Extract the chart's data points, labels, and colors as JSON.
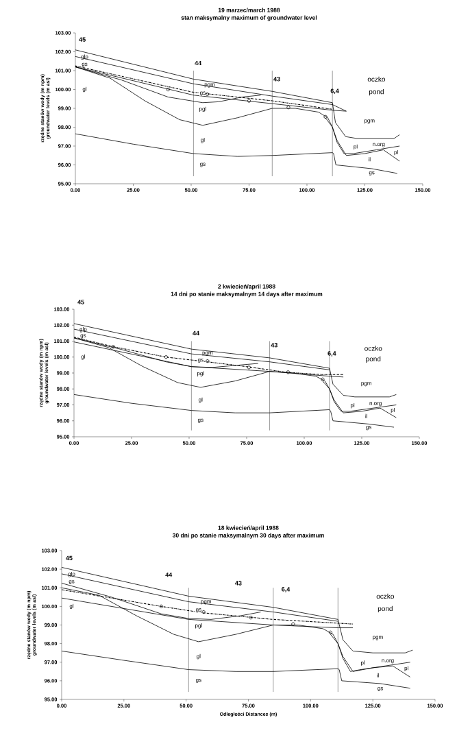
{
  "chart_data": [
    {
      "type": "line",
      "title": "19 marzec/march 1988",
      "subtitle": "stan maksymalny   maximum of groundwater level",
      "ylabel": "rzędne stanów wody (m npm) groundwater levels (m asl)",
      "xlim": [
        0,
        150
      ],
      "ylim": [
        95,
        103
      ],
      "xticks": [
        {
          "value": 0,
          "label": "0.00"
        },
        {
          "value": 25,
          "label": "25.00"
        },
        {
          "value": 50,
          "label": "50.00"
        },
        {
          "value": 75,
          "label": "75.00"
        },
        {
          "value": 100,
          "label": "100.00"
        },
        {
          "value": 125,
          "label": "125.00"
        },
        {
          "value": 150,
          "label": "150.00"
        }
      ],
      "yticks": [
        {
          "value": 95,
          "label": "95.00"
        },
        {
          "value": 96,
          "label": "96.00"
        },
        {
          "value": 97,
          "label": "97.00"
        },
        {
          "value": 98,
          "label": "98.00"
        },
        {
          "value": 99,
          "label": "99.00"
        },
        {
          "value": 100,
          "label": "100.00"
        },
        {
          "value": 101,
          "label": "101.00"
        },
        {
          "value": 102,
          "label": "102.00"
        },
        {
          "value": 103,
          "label": "103.00"
        }
      ],
      "ref_lines": [
        {
          "axis": "x",
          "value": 51
        },
        {
          "axis": "x",
          "value": 85
        },
        {
          "axis": "x",
          "value": 111
        }
      ],
      "annotations": [
        "45",
        "44",
        "43",
        "6,4",
        "glp",
        "gs",
        "gl",
        "pgm",
        "gs",
        "pgl",
        "gl",
        "gs",
        "oczko",
        "pond",
        "pgm",
        "n.org",
        "pl",
        "il",
        "pl",
        "gs"
      ],
      "series": [
        {
          "type": "line",
          "color": "#000000",
          "line_style": "solid",
          "x": [
            0,
            51,
            85,
            111,
            112.3,
            116.7,
            121.6,
            137.6,
            140
          ],
          "values": [
            102.1,
            100.55,
            99.9,
            99.3,
            98.25,
            97.5,
            97.4,
            97.4,
            97.6
          ]
        },
        {
          "type": "line",
          "color": "#000000",
          "line_style": "solid",
          "x": [
            0,
            51,
            85,
            111,
            117
          ],
          "values": [
            101.75,
            100.3,
            99.65,
            99.2,
            98.85
          ]
        },
        {
          "type": "line",
          "color": "#000000",
          "line_style": "solid",
          "x": [
            0,
            51,
            85,
            111,
            117
          ],
          "values": [
            101.2,
            99.7,
            99.25,
            98.9,
            98.85
          ]
        },
        {
          "type": "line",
          "color": "#000000",
          "line_style": "solid",
          "x": [
            0,
            20,
            40,
            55,
            62,
            72,
            80
          ],
          "values": [
            101.2,
            100.5,
            99.6,
            99.3,
            99.35,
            99.6,
            99.7
          ]
        },
        {
          "type": "line",
          "color": "#000000",
          "line_style": "solid",
          "x": [
            0,
            15,
            30,
            45,
            55,
            70,
            85,
            95,
            105,
            109,
            111,
            113,
            116,
            120,
            130,
            140
          ],
          "values": [
            101.2,
            100.6,
            99.4,
            98.4,
            98.1,
            98.5,
            99.0,
            99.0,
            98.8,
            98.5,
            98.0,
            97.2,
            96.6,
            96.6,
            96.8,
            97.0
          ]
        },
        {
          "type": "line",
          "color": "#000000",
          "line_style": "solid",
          "x": [
            108,
            111,
            113,
            117,
            125,
            133,
            140
          ],
          "values": [
            98.5,
            98.0,
            97.3,
            96.5,
            96.6,
            96.8,
            96.2
          ]
        },
        {
          "type": "line",
          "color": "#000000",
          "line_style": "solid",
          "x": [
            0,
            25,
            51,
            70,
            85,
            111,
            111.5,
            112.5,
            128,
            139
          ],
          "values": [
            97.65,
            97.1,
            96.6,
            96.45,
            96.5,
            96.65,
            96.6,
            96.0,
            95.8,
            95.55
          ]
        },
        {
          "type": "line",
          "color": "#000000",
          "line_style": "dashdot",
          "x": [
            0,
            51,
            85,
            111
          ],
          "values": [
            101.25,
            99.85,
            99.4,
            98.95
          ]
        },
        {
          "type": "scatter",
          "color": "#000000",
          "marker": "circle",
          "x": [
            40,
            57,
            75,
            92,
            108
          ],
          "values": [
            100.0,
            99.75,
            99.4,
            99.05,
            98.55
          ]
        }
      ]
    },
    {
      "type": "line",
      "title": "2 kwiecień/april 1988",
      "subtitle": "14 dni po stanie maksymalnym 14 days after maximum",
      "ylabel": "rzędne stanów wody (m npm) groundwater levels (m asl)",
      "xlim": [
        0,
        150
      ],
      "ylim": [
        95,
        103
      ],
      "xticks": [
        {
          "value": 0,
          "label": "0.00"
        },
        {
          "value": 25,
          "label": "25.00"
        },
        {
          "value": 50,
          "label": "50.00"
        },
        {
          "value": 75,
          "label": "75.00"
        },
        {
          "value": 100,
          "label": "100.00"
        },
        {
          "value": 125,
          "label": "125.00"
        },
        {
          "value": 150,
          "label": "150.00"
        }
      ],
      "yticks": [
        {
          "value": 95,
          "label": "95.00"
        },
        {
          "value": 96,
          "label": "96.00"
        },
        {
          "value": 97,
          "label": "97.00"
        },
        {
          "value": 98,
          "label": "98.00"
        },
        {
          "value": 99,
          "label": "99.00"
        },
        {
          "value": 100,
          "label": "100.00"
        },
        {
          "value": 101,
          "label": "101.00"
        },
        {
          "value": 102,
          "label": "102.00"
        },
        {
          "value": 103,
          "label": "103.00"
        }
      ],
      "ref_lines": [
        {
          "axis": "x",
          "value": 51
        },
        {
          "axis": "x",
          "value": 85
        },
        {
          "axis": "x",
          "value": 111
        }
      ],
      "annotations": [
        "45",
        "44",
        "43",
        "6,4",
        "glp",
        "gs",
        "gl",
        "pgm",
        "gs",
        "pgl",
        "gl",
        "gs",
        "oczko",
        "pond",
        "pgm",
        "n.org",
        "pl",
        "il",
        "pl",
        "gs"
      ],
      "series": [
        {
          "type": "line",
          "color": "#000000",
          "line_style": "solid",
          "x": [
            0,
            51,
            85,
            111,
            112.5,
            117,
            122,
            137,
            140
          ],
          "values": [
            102.1,
            100.5,
            99.95,
            99.3,
            98.3,
            97.6,
            97.5,
            97.5,
            97.65
          ]
        },
        {
          "type": "line",
          "color": "#000000",
          "line_style": "solid",
          "x": [
            0,
            51,
            85,
            111
          ],
          "values": [
            101.75,
            100.2,
            99.7,
            99.2
          ]
        },
        {
          "type": "line",
          "color": "#000000",
          "line_style": "solid",
          "x": [
            0,
            51,
            85,
            111,
            117
          ],
          "values": [
            100.95,
            99.4,
            99.1,
            98.8,
            98.75
          ]
        },
        {
          "type": "line",
          "color": "#000000",
          "line_style": "solid",
          "x": [
            0,
            20,
            40,
            51,
            60,
            72,
            80
          ],
          "values": [
            101.2,
            100.5,
            99.7,
            99.4,
            99.35,
            99.5,
            99.6
          ]
        },
        {
          "type": "line",
          "color": "#000000",
          "line_style": "solid",
          "x": [
            0,
            15,
            30,
            45,
            55,
            70,
            85,
            95,
            105,
            109,
            111,
            113,
            116,
            120,
            130,
            140
          ],
          "values": [
            101.2,
            100.6,
            99.4,
            98.4,
            98.1,
            98.5,
            99.1,
            99.0,
            98.8,
            98.5,
            98.0,
            97.2,
            96.6,
            96.6,
            96.8,
            97.0
          ]
        },
        {
          "type": "line",
          "color": "#000000",
          "line_style": "solid",
          "x": [
            108,
            111,
            113,
            117,
            125,
            133,
            140
          ],
          "values": [
            98.5,
            98.0,
            97.3,
            96.5,
            96.6,
            96.8,
            96.2
          ]
        },
        {
          "type": "line",
          "color": "#000000",
          "line_style": "solid",
          "x": [
            0,
            25,
            51,
            70,
            85,
            111,
            111.5,
            112.5,
            128,
            139
          ],
          "values": [
            97.65,
            97.1,
            96.65,
            96.5,
            96.5,
            96.7,
            96.6,
            96.0,
            95.8,
            95.6
          ]
        },
        {
          "type": "line",
          "color": "#000000",
          "line_style": "dashdot",
          "x": [
            0,
            17,
            40,
            58,
            75,
            92,
            108,
            117
          ],
          "values": [
            101.25,
            100.65,
            100.0,
            99.7,
            99.4,
            99.05,
            98.9,
            98.9
          ]
        },
        {
          "type": "scatter",
          "color": "#000000",
          "marker": "circle",
          "x": [
            17,
            40,
            58,
            76,
            93,
            108
          ],
          "values": [
            100.65,
            100.0,
            99.75,
            99.35,
            99.05,
            98.6
          ]
        }
      ]
    },
    {
      "type": "line",
      "title": "18 kwiecień/april 1988",
      "subtitle": "30 dni po stanie maksymalnym 30 days after maximum",
      "xlabel": "Odległości Distances (m)",
      "ylabel": "rzędne stanów wody (m npm) groundwater levels (m asl)",
      "xlim": [
        0,
        150
      ],
      "ylim": [
        95,
        103
      ],
      "xticks": [
        {
          "value": 0,
          "label": "0.00"
        },
        {
          "value": 25,
          "label": "25.00"
        },
        {
          "value": 50,
          "label": "50.00"
        },
        {
          "value": 75,
          "label": "75.00"
        },
        {
          "value": 100,
          "label": "100.00"
        },
        {
          "value": 125,
          "label": "125.00"
        },
        {
          "value": 150,
          "label": "150.00"
        }
      ],
      "yticks": [
        {
          "value": 95,
          "label": "95.00"
        },
        {
          "value": 96,
          "label": "96.00"
        },
        {
          "value": 97,
          "label": "97.00"
        },
        {
          "value": 98,
          "label": "98.00"
        },
        {
          "value": 99,
          "label": "99.00"
        },
        {
          "value": 100,
          "label": "100.00"
        },
        {
          "value": 101,
          "label": "101.00"
        },
        {
          "value": 102,
          "label": "102.00"
        },
        {
          "value": 103,
          "label": "103.00"
        }
      ],
      "ref_lines": [
        {
          "axis": "x",
          "value": 51
        },
        {
          "axis": "x",
          "value": 85
        },
        {
          "axis": "x",
          "value": 111
        }
      ],
      "annotations": [
        "45",
        "44",
        "43",
        "6,4",
        "glp",
        "gs",
        "gl",
        "pgm",
        "gs",
        "pgl",
        "gl",
        "gs",
        "oczko",
        "pond",
        "pgm",
        "n.org",
        "pl",
        "il",
        "pl",
        "gs"
      ],
      "series": [
        {
          "type": "line",
          "color": "#000000",
          "line_style": "solid",
          "x": [
            0,
            51,
            85,
            111,
            113,
            117,
            125,
            138,
            141
          ],
          "values": [
            102.1,
            100.55,
            99.95,
            99.3,
            98.2,
            97.6,
            97.5,
            97.5,
            97.65
          ]
        },
        {
          "type": "line",
          "color": "#000000",
          "line_style": "solid",
          "x": [
            0,
            51,
            85,
            111
          ],
          "values": [
            101.75,
            100.25,
            99.7,
            99.2
          ]
        },
        {
          "type": "line",
          "color": "#000000",
          "line_style": "solid",
          "x": [
            0,
            51,
            85,
            111,
            117
          ],
          "values": [
            100.45,
            99.3,
            99.0,
            98.85,
            98.85
          ]
        },
        {
          "type": "line",
          "color": "#000000",
          "line_style": "solid",
          "x": [
            0,
            20,
            40,
            51,
            60,
            72,
            80
          ],
          "values": [
            101.25,
            100.5,
            99.6,
            99.35,
            99.3,
            99.5,
            99.7
          ]
        },
        {
          "type": "line",
          "color": "#000000",
          "line_style": "solid",
          "x": [
            0,
            15,
            30,
            45,
            55,
            70,
            85,
            95,
            105,
            109,
            111,
            113,
            116,
            120,
            130,
            140
          ],
          "values": [
            101.0,
            100.6,
            99.5,
            98.5,
            98.1,
            98.5,
            99.0,
            99.0,
            98.8,
            98.5,
            98.0,
            97.2,
            96.5,
            96.6,
            96.8,
            97.0
          ]
        },
        {
          "type": "line",
          "color": "#000000",
          "line_style": "solid",
          "x": [
            108,
            111,
            113,
            117,
            125,
            133,
            140
          ],
          "values": [
            98.5,
            98.0,
            97.3,
            96.5,
            96.7,
            96.8,
            96.2
          ]
        },
        {
          "type": "line",
          "color": "#000000",
          "line_style": "solid",
          "x": [
            0,
            25,
            51,
            70,
            85,
            111,
            111.5,
            112.5,
            128,
            140
          ],
          "values": [
            97.6,
            97.1,
            96.6,
            96.5,
            96.5,
            96.65,
            96.6,
            96.0,
            95.85,
            95.6
          ]
        },
        {
          "type": "line",
          "color": "#000000",
          "line_style": "dashdot",
          "x": [
            0,
            40,
            57,
            85,
            117
          ],
          "values": [
            100.9,
            100.0,
            99.65,
            99.3,
            99.05
          ]
        },
        {
          "type": "scatter",
          "color": "#000000",
          "marker": "circle",
          "x": [
            40,
            57,
            76,
            93,
            108
          ],
          "values": [
            100.0,
            99.7,
            99.4,
            99.05,
            98.6
          ]
        }
      ]
    }
  ]
}
